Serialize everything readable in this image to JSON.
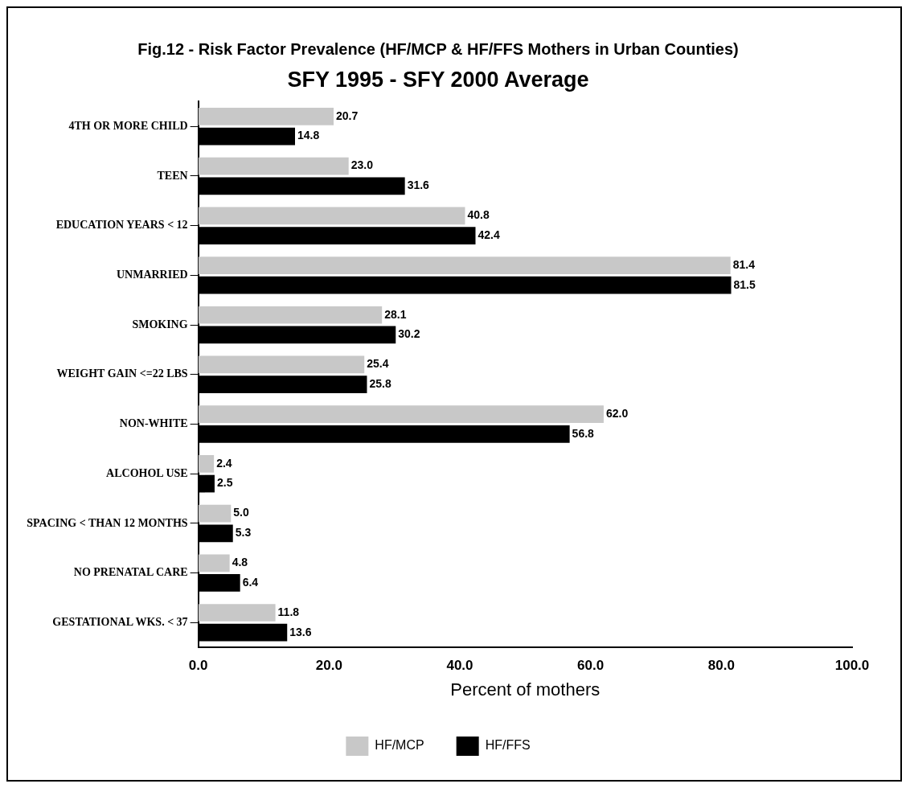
{
  "chart_data": {
    "type": "bar",
    "orientation": "horizontal",
    "title": "Fig.12 - Risk Factor Prevalence (HF/MCP & HF/FFS Mothers in Urban Counties)",
    "subtitle": "SFY 1995 - SFY 2000 Average",
    "xlabel": "Percent of mothers",
    "categories": [
      "4TH OR MORE CHILD",
      "TEEN",
      "EDUCATION YEARS < 12",
      "UNMARRIED",
      "SMOKING",
      "WEIGHT GAIN <=22 LBS",
      "NON-WHITE",
      "ALCOHOL USE",
      "SPACING < THAN 12 MONTHS",
      "NO PRENATAL CARE",
      "GESTATIONAL WKS. < 37"
    ],
    "series": [
      {
        "name": "HF/MCP",
        "color": "#c8c8c8",
        "values": [
          20.7,
          23.0,
          40.8,
          81.4,
          28.1,
          25.4,
          62.0,
          2.4,
          5.0,
          4.8,
          11.8
        ],
        "value_labels": [
          "20.7",
          "23.0",
          "40.8",
          "81.4",
          "28.1",
          "25.4",
          "62.0",
          "2.4",
          "5.0",
          "4.8",
          "11.8"
        ]
      },
      {
        "name": "HF/FFS",
        "color": "#000000",
        "values": [
          14.8,
          31.6,
          42.4,
          81.5,
          30.2,
          25.8,
          56.8,
          2.5,
          5.3,
          6.4,
          13.6
        ],
        "value_labels": [
          "14.8",
          "31.6",
          "42.4",
          "81.5",
          "30.2",
          "25.8",
          "56.8",
          "2.5",
          "5.3",
          "6.4",
          "13.6"
        ]
      }
    ],
    "xlim": [
      0,
      100
    ],
    "xticks": [
      {
        "value": 0,
        "label": "0.0"
      },
      {
        "value": 20,
        "label": "20.0"
      },
      {
        "value": 40,
        "label": "40.0"
      },
      {
        "value": 60,
        "label": "60.0"
      },
      {
        "value": 80,
        "label": "80.0"
      },
      {
        "value": 100,
        "label": "100.0"
      }
    ],
    "grid": false,
    "legend": "bottom"
  }
}
